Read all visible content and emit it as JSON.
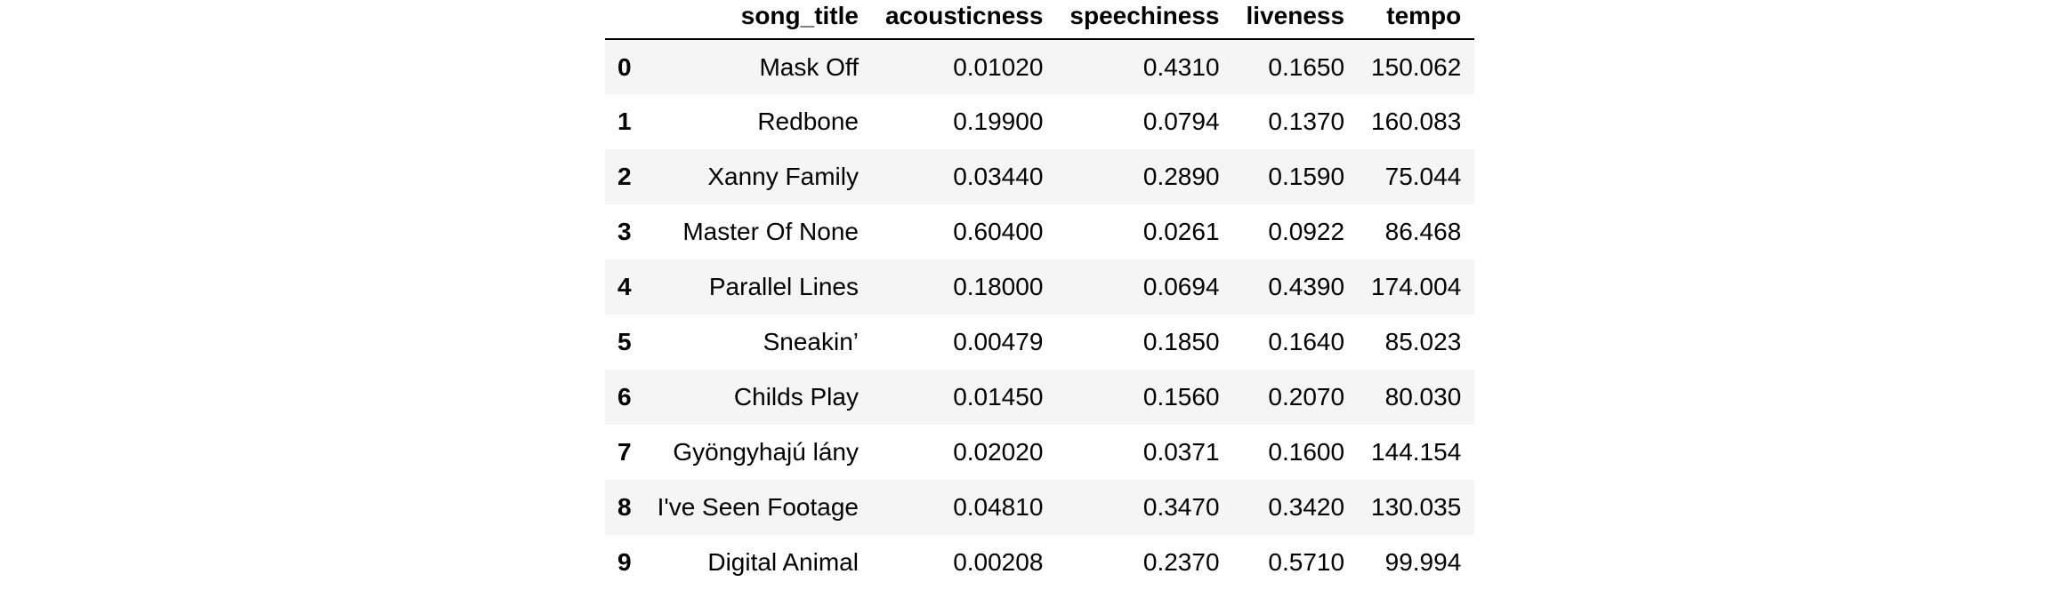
{
  "table": {
    "index_header": "",
    "columns": [
      "song_title",
      "acousticness",
      "speechiness",
      "liveness",
      "tempo"
    ],
    "rows": [
      {
        "index": "0",
        "cells": [
          "Mask Off",
          "0.01020",
          "0.4310",
          "0.1650",
          "150.062"
        ]
      },
      {
        "index": "1",
        "cells": [
          "Redbone",
          "0.19900",
          "0.0794",
          "0.1370",
          "160.083"
        ]
      },
      {
        "index": "2",
        "cells": [
          "Xanny Family",
          "0.03440",
          "0.2890",
          "0.1590",
          "75.044"
        ]
      },
      {
        "index": "3",
        "cells": [
          "Master Of None",
          "0.60400",
          "0.0261",
          "0.0922",
          "86.468"
        ]
      },
      {
        "index": "4",
        "cells": [
          "Parallel Lines",
          "0.18000",
          "0.0694",
          "0.4390",
          "174.004"
        ]
      },
      {
        "index": "5",
        "cells": [
          "Sneakin’",
          "0.00479",
          "0.1850",
          "0.1640",
          "85.023"
        ]
      },
      {
        "index": "6",
        "cells": [
          "Childs Play",
          "0.01450",
          "0.1560",
          "0.2070",
          "80.030"
        ]
      },
      {
        "index": "7",
        "cells": [
          "Gyöngyhajú lány",
          "0.02020",
          "0.0371",
          "0.1600",
          "144.154"
        ]
      },
      {
        "index": "8",
        "cells": [
          "I've Seen Footage",
          "0.04810",
          "0.3470",
          "0.3420",
          "130.035"
        ]
      },
      {
        "index": "9",
        "cells": [
          "Digital Animal",
          "0.00208",
          "0.2370",
          "0.5710",
          "99.994"
        ]
      }
    ]
  }
}
